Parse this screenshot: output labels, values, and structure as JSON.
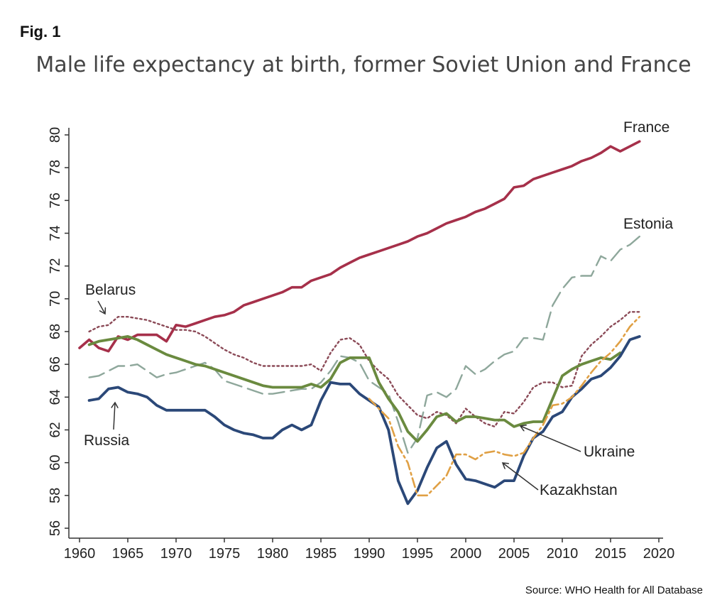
{
  "figure": {
    "label": "Fig. 1",
    "source": "Source: WHO Health for All Database"
  },
  "chart_data": {
    "type": "line",
    "title": "Male life expectancy at birth, former Soviet Union and France",
    "xlabel": "",
    "ylabel": "",
    "xlim": [
      1960,
      2020
    ],
    "ylim": [
      56,
      80
    ],
    "x_ticks": [
      1960,
      1965,
      1970,
      1975,
      1980,
      1985,
      1990,
      1995,
      2000,
      2005,
      2010,
      2015,
      2020
    ],
    "y_ticks": [
      56,
      58,
      60,
      62,
      64,
      66,
      68,
      70,
      72,
      74,
      76,
      78,
      80
    ],
    "grid": false,
    "legend": "none (series labelled directly on chart)",
    "series": [
      {
        "name": "France",
        "color": "#a6304a",
        "style": "solid",
        "x": [
          1960,
          1961,
          1962,
          1963,
          1964,
          1965,
          1966,
          1967,
          1968,
          1969,
          1970,
          1971,
          1972,
          1973,
          1974,
          1975,
          1976,
          1977,
          1978,
          1979,
          1980,
          1981,
          1982,
          1983,
          1984,
          1985,
          1986,
          1987,
          1988,
          1989,
          1990,
          1991,
          1992,
          1993,
          1994,
          1995,
          1996,
          1997,
          1998,
          1999,
          2000,
          2001,
          2002,
          2003,
          2004,
          2005,
          2006,
          2007,
          2008,
          2009,
          2010,
          2011,
          2012,
          2013,
          2014,
          2015,
          2016,
          2017,
          2018
        ],
        "values": [
          67.0,
          67.5,
          67.0,
          66.8,
          67.7,
          67.5,
          67.8,
          67.8,
          67.8,
          67.4,
          68.4,
          68.3,
          68.5,
          68.7,
          68.9,
          69.0,
          69.2,
          69.6,
          69.8,
          70.0,
          70.2,
          70.4,
          70.7,
          70.7,
          71.1,
          71.3,
          71.5,
          71.9,
          72.2,
          72.5,
          72.7,
          72.9,
          73.1,
          73.3,
          73.5,
          73.8,
          74.0,
          74.3,
          74.6,
          74.8,
          75.0,
          75.3,
          75.5,
          75.8,
          76.1,
          76.8,
          76.9,
          77.3,
          77.5,
          77.7,
          77.9,
          78.1,
          78.4,
          78.6,
          78.9,
          79.3,
          79.0,
          79.3,
          79.6
        ]
      },
      {
        "name": "Estonia",
        "color": "#8ea79b",
        "style": "longdash",
        "x": [
          1961,
          1962,
          1963,
          1964,
          1965,
          1966,
          1967,
          1968,
          1969,
          1970,
          1971,
          1972,
          1973,
          1974,
          1975,
          1976,
          1977,
          1978,
          1979,
          1980,
          1981,
          1982,
          1983,
          1984,
          1985,
          1986,
          1987,
          1988,
          1989,
          1990,
          1991,
          1992,
          1993,
          1994,
          1995,
          1996,
          1997,
          1998,
          1999,
          2000,
          2001,
          2002,
          2003,
          2004,
          2005,
          2006,
          2007,
          2008,
          2009,
          2010,
          2011,
          2012,
          2013,
          2014,
          2015,
          2016,
          2017,
          2018
        ],
        "values": [
          65.2,
          65.3,
          65.6,
          65.9,
          65.9,
          66.0,
          65.6,
          65.2,
          65.4,
          65.5,
          65.7,
          65.9,
          66.1,
          65.7,
          65.0,
          64.8,
          64.6,
          64.4,
          64.2,
          64.2,
          64.3,
          64.4,
          64.5,
          64.5,
          64.9,
          65.6,
          66.5,
          66.4,
          66.1,
          65.0,
          64.6,
          64.2,
          62.5,
          60.6,
          61.5,
          64.1,
          64.3,
          64.0,
          64.5,
          65.9,
          65.4,
          65.7,
          66.2,
          66.6,
          66.8,
          67.6,
          67.6,
          67.5,
          69.6,
          70.6,
          71.3,
          71.4,
          71.4,
          72.6,
          72.3,
          73.0,
          73.3,
          73.8
        ]
      },
      {
        "name": "Belarus",
        "color": "#8b4a57",
        "style": "dotted",
        "x": [
          1961,
          1962,
          1963,
          1964,
          1965,
          1966,
          1967,
          1968,
          1969,
          1970,
          1971,
          1972,
          1973,
          1974,
          1975,
          1976,
          1977,
          1978,
          1979,
          1980,
          1981,
          1982,
          1983,
          1984,
          1985,
          1986,
          1987,
          1988,
          1989,
          1990,
          1991,
          1992,
          1993,
          1994,
          1995,
          1996,
          1997,
          1998,
          1999,
          2000,
          2001,
          2002,
          2003,
          2004,
          2005,
          2006,
          2007,
          2008,
          2009,
          2010,
          2011,
          2012,
          2013,
          2014,
          2015,
          2016,
          2017,
          2018
        ],
        "values": [
          68.0,
          68.3,
          68.4,
          68.9,
          68.9,
          68.8,
          68.7,
          68.5,
          68.3,
          68.1,
          68.1,
          68.0,
          67.7,
          67.3,
          66.9,
          66.6,
          66.4,
          66.1,
          65.9,
          65.9,
          65.9,
          65.9,
          65.9,
          66.0,
          65.6,
          66.7,
          67.5,
          67.6,
          67.2,
          66.2,
          65.6,
          65.1,
          64.1,
          63.5,
          62.9,
          62.7,
          63.1,
          62.9,
          62.4,
          63.3,
          62.8,
          62.4,
          62.2,
          63.1,
          63.0,
          63.7,
          64.6,
          64.9,
          64.9,
          64.6,
          64.7,
          66.5,
          67.2,
          67.7,
          68.3,
          68.7,
          69.2,
          69.2
        ]
      },
      {
        "name": "Ukraine",
        "color": "#6a8a3f",
        "style": "solid",
        "x": [
          1961,
          1962,
          1963,
          1964,
          1965,
          1966,
          1967,
          1968,
          1969,
          1970,
          1971,
          1972,
          1973,
          1974,
          1975,
          1976,
          1977,
          1978,
          1979,
          1980,
          1981,
          1982,
          1983,
          1984,
          1985,
          1986,
          1987,
          1988,
          1989,
          1990,
          1991,
          1992,
          1993,
          1994,
          1995,
          1996,
          1997,
          1998,
          1999,
          2000,
          2001,
          2002,
          2003,
          2004,
          2005,
          2006,
          2007,
          2008,
          2009,
          2010,
          2011,
          2012,
          2013,
          2014,
          2015,
          2016
        ],
        "values": [
          67.2,
          67.4,
          67.5,
          67.6,
          67.7,
          67.5,
          67.2,
          66.9,
          66.6,
          66.4,
          66.2,
          66.0,
          65.9,
          65.7,
          65.5,
          65.3,
          65.1,
          64.9,
          64.7,
          64.6,
          64.6,
          64.6,
          64.6,
          64.8,
          64.6,
          65.1,
          66.1,
          66.4,
          66.4,
          66.4,
          64.9,
          63.9,
          63.1,
          61.9,
          61.3,
          62.0,
          62.8,
          63.0,
          62.5,
          62.8,
          62.8,
          62.7,
          62.6,
          62.6,
          62.2,
          62.4,
          62.5,
          62.5,
          63.9,
          65.3,
          65.7,
          66.0,
          66.2,
          66.4,
          66.3,
          66.7
        ]
      },
      {
        "name": "Russia",
        "color": "#2b4878",
        "style": "solid",
        "x": [
          1961,
          1962,
          1963,
          1964,
          1965,
          1966,
          1967,
          1968,
          1969,
          1970,
          1971,
          1972,
          1973,
          1974,
          1975,
          1976,
          1977,
          1978,
          1979,
          1980,
          1981,
          1982,
          1983,
          1984,
          1985,
          1986,
          1987,
          1988,
          1989,
          1990,
          1991,
          1992,
          1993,
          1994,
          1995,
          1996,
          1997,
          1998,
          1999,
          2000,
          2001,
          2002,
          2003,
          2004,
          2005,
          2006,
          2007,
          2008,
          2009,
          2010,
          2011,
          2012,
          2013,
          2014,
          2015,
          2016,
          2017,
          2018
        ],
        "values": [
          63.8,
          63.9,
          64.5,
          64.6,
          64.3,
          64.2,
          64.0,
          63.5,
          63.2,
          63.2,
          63.2,
          63.2,
          63.2,
          62.8,
          62.3,
          62.0,
          61.8,
          61.7,
          61.5,
          61.5,
          62.0,
          62.3,
          62.0,
          62.3,
          63.8,
          64.9,
          64.8,
          64.8,
          64.2,
          63.8,
          63.4,
          62.0,
          58.9,
          57.5,
          58.3,
          59.7,
          60.9,
          61.3,
          59.9,
          59.0,
          58.9,
          58.7,
          58.5,
          58.9,
          58.9,
          60.4,
          61.5,
          61.9,
          62.8,
          63.1,
          64.0,
          64.5,
          65.1,
          65.3,
          65.8,
          66.5,
          67.5,
          67.7
        ]
      },
      {
        "name": "Kazakhstan",
        "color": "#e0a044",
        "style": "dashdot",
        "x": [
          1990,
          1991,
          1992,
          1993,
          1994,
          1995,
          1996,
          1997,
          1998,
          1999,
          2000,
          2001,
          2002,
          2003,
          2004,
          2005,
          2006,
          2007,
          2008,
          2009,
          2010,
          2011,
          2012,
          2013,
          2014,
          2015,
          2016,
          2017,
          2018
        ],
        "values": [
          63.9,
          63.3,
          62.7,
          61.0,
          60.0,
          58.0,
          58.0,
          58.6,
          59.2,
          60.5,
          60.5,
          60.2,
          60.6,
          60.7,
          60.5,
          60.4,
          60.6,
          61.5,
          62.3,
          63.5,
          63.6,
          64.0,
          64.7,
          65.5,
          66.2,
          66.7,
          67.4,
          68.3,
          68.9
        ]
      }
    ],
    "annotations": [
      {
        "text": "France"
      },
      {
        "text": "Estonia"
      },
      {
        "text": "Belarus"
      },
      {
        "text": "Russia"
      },
      {
        "text": "Ukraine"
      },
      {
        "text": "Kazakhstan"
      }
    ]
  }
}
